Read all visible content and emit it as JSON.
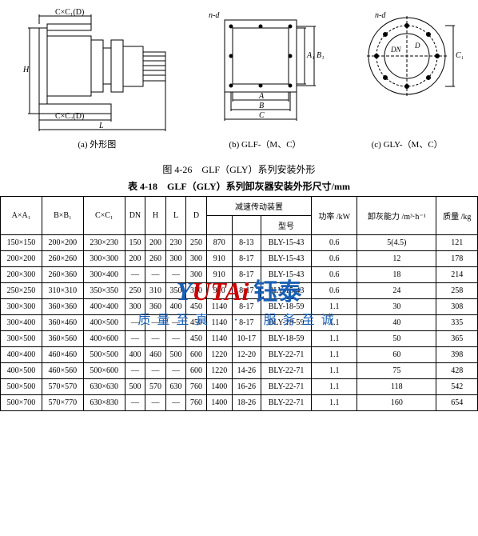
{
  "diagrams": {
    "a_label": "(a) 外形图",
    "b_label": "(b) GLF-（M、C）",
    "c_label": "(c) GLY-（M、C）",
    "dim_labels": {
      "cc1d_top": "C×C₁(D)",
      "cc2d_bot": "C×C₂(D)",
      "L": "L",
      "H": "H",
      "nd": "n-d",
      "A": "A",
      "A1": "A₁",
      "B": "B",
      "B1": "B₁",
      "C": "C",
      "C1": "C₁",
      "DN": "DN",
      "D": "D"
    }
  },
  "fig_title": "图 4-26　GLF（GLY）系列安装外形",
  "table_title": "表 4-18　GLF（GLY）系列卸灰器安装外形尺寸/mm",
  "headers": {
    "AA1": "A×A₁",
    "BB1": "B×B₁",
    "CC1": "C×C₁",
    "DN": "DN",
    "H": "H",
    "L": "L",
    "D": "D",
    "drive": "减速传动装置",
    "model": "型号",
    "power": "功率\n/kW",
    "cap": "卸灰能力\n/m³·h⁻¹",
    "mass": "质量\n/kg"
  },
  "rows": [
    {
      "aa1": "150×150",
      "bb1": "200×200",
      "cc1": "230×230",
      "dn": "150",
      "h": "200",
      "l": "230",
      "d": "250",
      "head": "870",
      "bolt": "8-13",
      "model": "BLY-15-43",
      "kw": "0.6",
      "cap": "5(4.5)",
      "kg": "121"
    },
    {
      "aa1": "200×200",
      "bb1": "260×260",
      "cc1": "300×300",
      "dn": "200",
      "h": "260",
      "l": "300",
      "d": "300",
      "head": "910",
      "bolt": "8-17",
      "model": "BLY-15-43",
      "kw": "0.6",
      "cap": "12",
      "kg": "178"
    },
    {
      "aa1": "200×300",
      "bb1": "260×360",
      "cc1": "300×400",
      "dn": "—",
      "h": "—",
      "l": "—",
      "d": "300",
      "head": "910",
      "bolt": "8-17",
      "model": "BLY-15-43",
      "kw": "0.6",
      "cap": "18",
      "kg": "214"
    },
    {
      "aa1": "250×250",
      "bb1": "310×310",
      "cc1": "350×350",
      "dn": "250",
      "h": "310",
      "l": "350",
      "d": "350",
      "head": "910",
      "bolt": "8-17",
      "model": "BLY-15-43",
      "kw": "0.6",
      "cap": "24",
      "kg": "258"
    },
    {
      "aa1": "300×300",
      "bb1": "360×360",
      "cc1": "400×400",
      "dn": "300",
      "h": "360",
      "l": "400",
      "d": "450",
      "head": "1140",
      "bolt": "8-17",
      "model": "BLY-18-59",
      "kw": "1.1",
      "cap": "30",
      "kg": "308"
    },
    {
      "aa1": "300×400",
      "bb1": "360×460",
      "cc1": "400×500",
      "dn": "—",
      "h": "—",
      "l": "—",
      "d": "450",
      "head": "1140",
      "bolt": "8-17",
      "model": "BLY-18-59",
      "kw": "1.1",
      "cap": "40",
      "kg": "335"
    },
    {
      "aa1": "300×500",
      "bb1": "360×560",
      "cc1": "400×600",
      "dn": "—",
      "h": "—",
      "l": "—",
      "d": "450",
      "head": "1140",
      "bolt": "10-17",
      "model": "BLY-18-59",
      "kw": "1.1",
      "cap": "50",
      "kg": "365"
    },
    {
      "aa1": "400×400",
      "bb1": "460×460",
      "cc1": "500×500",
      "dn": "400",
      "h": "460",
      "l": "500",
      "d": "600",
      "head": "1220",
      "bolt": "12-20",
      "model": "BLY-22-71",
      "kw": "1.1",
      "cap": "60",
      "kg": "398"
    },
    {
      "aa1": "400×500",
      "bb1": "460×560",
      "cc1": "500×600",
      "dn": "—",
      "h": "—",
      "l": "—",
      "d": "600",
      "head": "1220",
      "bolt": "14-26",
      "model": "BLY-22-71",
      "kw": "1.1",
      "cap": "75",
      "kg": "428"
    },
    {
      "aa1": "500×500",
      "bb1": "570×570",
      "cc1": "630×630",
      "dn": "500",
      "h": "570",
      "l": "630",
      "d": "760",
      "head": "1400",
      "bolt": "16-26",
      "model": "BLY-22-71",
      "kw": "1.1",
      "cap": "118",
      "kg": "542"
    },
    {
      "aa1": "500×700",
      "bb1": "570×770",
      "cc1": "630×830",
      "dn": "—",
      "h": "—",
      "l": "—",
      "d": "760",
      "head": "1400",
      "bolt": "18-26",
      "model": "BLY-22-71",
      "kw": "1.1",
      "cap": "160",
      "kg": "654"
    }
  ],
  "watermark": {
    "brand_y": "Y",
    "brand_utai": "UTAi",
    "brand_cn": "钰泰",
    "slogan": "质量至真　·　服务至诚"
  },
  "colors": {
    "border": "#000000",
    "bg": "#ffffff",
    "wm_blue": "#1a5fb4",
    "wm_red": "#c00000"
  }
}
